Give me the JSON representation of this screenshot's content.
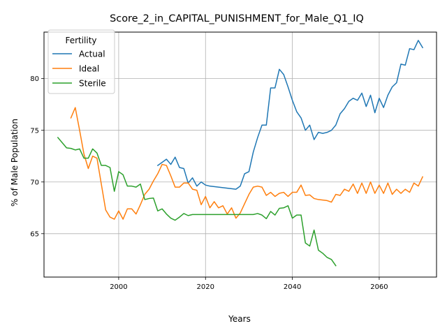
{
  "chart_data": {
    "type": "line",
    "title": "Score_2_in_CAPITAL_PUNISHMENT_for_Male_Q1_IQ",
    "xlabel": "Years",
    "ylabel": "% of Male Population",
    "xlim": [
      1982.8,
      2073.2
    ],
    "ylim": [
      60.8,
      84.5
    ],
    "xticks": [
      2000,
      2020,
      2040,
      2060
    ],
    "yticks": [
      65,
      70,
      75,
      80
    ],
    "grid": true,
    "legend": {
      "title": "Fertility",
      "position": "upper-left"
    },
    "series": [
      {
        "name": "Actual",
        "color": "#1f77b4",
        "x": [
          2009,
          2010,
          2011,
          2012,
          2013,
          2014,
          2015,
          2016,
          2017,
          2018,
          2019,
          2020,
          2021,
          2022,
          2023,
          2024,
          2025,
          2026,
          2027,
          2028,
          2029,
          2030,
          2031,
          2032,
          2033,
          2034,
          2035,
          2036,
          2037,
          2038,
          2039,
          2040,
          2041,
          2042,
          2043,
          2044,
          2045,
          2046,
          2047,
          2048,
          2049,
          2050,
          2051,
          2052,
          2053,
          2054,
          2055,
          2056,
          2057,
          2058,
          2059,
          2060,
          2061,
          2062,
          2063,
          2064,
          2065,
          2066,
          2067,
          2068,
          2069,
          2070
        ],
        "y": [
          71.6,
          71.9,
          72.2,
          71.7,
          72.4,
          71.4,
          71.3,
          69.9,
          70.4,
          69.6,
          70.0,
          69.7,
          69.6,
          69.55,
          69.5,
          69.45,
          69.4,
          69.35,
          69.3,
          69.6,
          70.8,
          71.0,
          72.9,
          74.3,
          75.5,
          75.5,
          79.1,
          79.1,
          80.9,
          80.4,
          79.2,
          77.9,
          76.8,
          76.2,
          75.0,
          75.5,
          74.1,
          74.8,
          74.7,
          74.8,
          75.0,
          75.5,
          76.6,
          77.1,
          77.8,
          78.1,
          77.9,
          78.6,
          77.3,
          78.4,
          76.7,
          78.1,
          77.2,
          78.4,
          79.2,
          79.6,
          81.4,
          81.3,
          82.9,
          82.8,
          83.7,
          83.0
        ]
      },
      {
        "name": "Ideal",
        "color": "#ff7f0e",
        "x": [
          1989,
          1990,
          1991,
          1992,
          1993,
          1994,
          1995,
          1996,
          1997,
          1998,
          1999,
          2000,
          2001,
          2002,
          2003,
          2004,
          2005,
          2006,
          2007,
          2008,
          2009,
          2010,
          2011,
          2012,
          2013,
          2014,
          2015,
          2016,
          2017,
          2018,
          2019,
          2020,
          2021,
          2022,
          2023,
          2024,
          2025,
          2026,
          2027,
          2028,
          2029,
          2030,
          2031,
          2032,
          2033,
          2034,
          2035,
          2036,
          2037,
          2038,
          2039,
          2040,
          2041,
          2042,
          2043,
          2044,
          2045,
          2046,
          2047,
          2048,
          2049,
          2050,
          2051,
          2052,
          2053,
          2054,
          2055,
          2056,
          2057,
          2058,
          2059,
          2060,
          2061,
          2062,
          2063,
          2064,
          2065,
          2066,
          2067,
          2068,
          2069,
          2070
        ],
        "y": [
          76.2,
          77.2,
          75.0,
          72.7,
          71.3,
          72.5,
          72.3,
          69.8,
          67.3,
          66.6,
          66.4,
          67.2,
          66.4,
          67.4,
          67.4,
          66.9,
          67.8,
          68.8,
          69.3,
          70.1,
          70.8,
          71.7,
          71.6,
          70.6,
          69.5,
          69.5,
          69.9,
          69.9,
          69.3,
          69.2,
          67.8,
          68.6,
          67.5,
          68.1,
          67.5,
          67.7,
          66.9,
          67.5,
          66.5,
          67.0,
          67.9,
          68.8,
          69.5,
          69.6,
          69.5,
          68.7,
          69.0,
          68.6,
          68.9,
          69.0,
          68.6,
          69.0,
          69.0,
          69.7,
          68.7,
          68.75,
          68.4,
          68.3,
          68.25,
          68.2,
          68.05,
          68.8,
          68.7,
          69.3,
          69.1,
          69.8,
          68.9,
          69.9,
          68.9,
          70.0,
          68.9,
          69.7,
          68.9,
          69.9,
          68.8,
          69.3,
          68.9,
          69.3,
          69.0,
          69.9,
          69.6,
          70.5
        ]
      },
      {
        "name": "Sterile",
        "color": "#2ca02c",
        "x": [
          1986,
          1987,
          1988,
          1989,
          1990,
          1991,
          1992,
          1993,
          1994,
          1995,
          1996,
          1997,
          1998,
          1999,
          2000,
          2001,
          2002,
          2003,
          2004,
          2005,
          2006,
          2007,
          2008,
          2009,
          2010,
          2011,
          2012,
          2013,
          2014,
          2015,
          2016,
          2017,
          2018,
          2019,
          2020,
          2021,
          2022,
          2023,
          2024,
          2025,
          2026,
          2027,
          2028,
          2029,
          2030,
          2031,
          2032,
          2033,
          2034,
          2035,
          2036,
          2037,
          2038,
          2039,
          2040,
          2041,
          2042,
          2043,
          2044,
          2045,
          2046,
          2047,
          2048,
          2049,
          2050
        ],
        "y": [
          74.3,
          73.8,
          73.3,
          73.25,
          73.1,
          73.2,
          72.3,
          72.3,
          73.2,
          72.8,
          71.6,
          71.6,
          71.4,
          69.1,
          71.0,
          70.7,
          69.6,
          69.6,
          69.5,
          69.8,
          68.3,
          68.4,
          68.45,
          67.2,
          67.4,
          66.9,
          66.5,
          66.3,
          66.6,
          66.95,
          66.75,
          66.85,
          66.85,
          66.85,
          66.85,
          66.85,
          66.85,
          66.85,
          66.85,
          66.85,
          66.85,
          66.85,
          66.85,
          66.85,
          66.85,
          66.85,
          66.95,
          66.8,
          66.45,
          67.15,
          66.8,
          67.45,
          67.5,
          67.7,
          66.5,
          66.8,
          66.8,
          64.1,
          63.8,
          65.35,
          63.4,
          63.1,
          62.7,
          62.5,
          61.9
        ]
      }
    ]
  }
}
